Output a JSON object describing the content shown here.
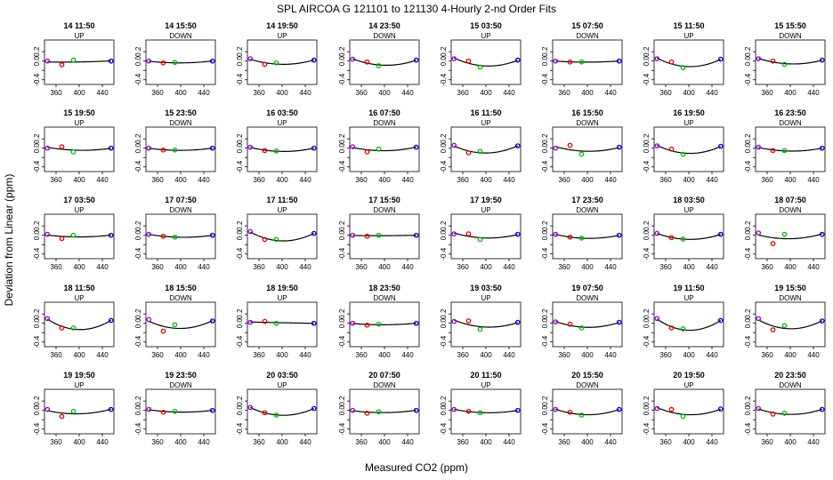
{
  "title": "SPL   AIRCOA G   121101 to 121130   4-Hourly 2-nd Order Fits",
  "xlabel": "Measured CO2 (ppm)",
  "ylabel": "Deviation from Linear (ppm)",
  "chart_data": {
    "type": "scatter",
    "layout": {
      "rows": 5,
      "cols": 8
    },
    "xlim": [
      340,
      460
    ],
    "ylim": [
      -0.5,
      0.45
    ],
    "x_ticks": [
      360,
      400,
      440
    ],
    "y_ticks": [
      -0.4,
      -0.2,
      0.0,
      0.2
    ],
    "y_tick_labels": [
      "-0.4",
      "",
      "0.0",
      "0.2"
    ],
    "x_tick_labels": [
      "360",
      "400",
      "440"
    ],
    "standard_x": [
      345,
      370,
      390,
      455
    ],
    "colors": {
      "s1": "#9900cc",
      "s2": "#dd0000",
      "s3": "#00bb00",
      "s4": "#0000cc",
      "fit": "#000000"
    },
    "panels": [
      {
        "label": "14 11:50",
        "dir": "UP",
        "y": [
          0.0,
          -0.08,
          0.02,
          0.0
        ]
      },
      {
        "label": "14 15:50",
        "dir": "DOWN",
        "y": [
          0.0,
          -0.04,
          -0.03,
          0.0
        ]
      },
      {
        "label": "14 19:50",
        "dir": "UP",
        "y": [
          0.05,
          -0.07,
          -0.04,
          0.02
        ]
      },
      {
        "label": "14 23:50",
        "dir": "DOWN",
        "y": [
          0.04,
          -0.02,
          -0.1,
          0.02
        ]
      },
      {
        "label": "15 03:50",
        "dir": "UP",
        "y": [
          0.05,
          0.0,
          -0.13,
          0.02
        ]
      },
      {
        "label": "15 07:50",
        "dir": "DOWN",
        "y": [
          0.0,
          -0.02,
          -0.02,
          0.0
        ]
      },
      {
        "label": "15 11:50",
        "dir": "UP",
        "y": [
          0.05,
          -0.02,
          -0.14,
          0.04
        ]
      },
      {
        "label": "15 15:50",
        "dir": "DOWN",
        "y": [
          0.05,
          0.0,
          -0.07,
          0.02
        ]
      },
      {
        "label": "15 19:50",
        "dir": "UP",
        "y": [
          0.0,
          0.03,
          -0.08,
          0.0
        ]
      },
      {
        "label": "15 23:50",
        "dir": "DOWN",
        "y": [
          0.0,
          -0.04,
          -0.04,
          0.0
        ]
      },
      {
        "label": "16 03:50",
        "dir": "UP",
        "y": [
          0.02,
          -0.05,
          -0.06,
          0.0
        ]
      },
      {
        "label": "16 07:50",
        "dir": "DOWN",
        "y": [
          0.03,
          -0.08,
          -0.02,
          0.02
        ]
      },
      {
        "label": "16 11:50",
        "dir": "UP",
        "y": [
          0.06,
          -0.1,
          -0.07,
          0.05
        ]
      },
      {
        "label": "16 15:50",
        "dir": "DOWN",
        "y": [
          0.0,
          0.06,
          -0.13,
          0.02
        ]
      },
      {
        "label": "16 19:50",
        "dir": "UP",
        "y": [
          0.05,
          -0.02,
          -0.13,
          0.04
        ]
      },
      {
        "label": "16 23:50",
        "dir": "DOWN",
        "y": [
          0.02,
          -0.05,
          -0.05,
          0.0
        ]
      },
      {
        "label": "17 03:50",
        "dir": "UP",
        "y": [
          0.02,
          -0.07,
          0.0,
          0.0
        ]
      },
      {
        "label": "17 07:50",
        "dir": "DOWN",
        "y": [
          0.02,
          -0.02,
          -0.04,
          0.0
        ]
      },
      {
        "label": "17 11:50",
        "dir": "UP",
        "y": [
          0.08,
          -0.09,
          -0.09,
          0.04
        ]
      },
      {
        "label": "17 15:50",
        "dir": "DOWN",
        "y": [
          0.0,
          -0.02,
          0.0,
          0.0
        ]
      },
      {
        "label": "17 19:50",
        "dir": "UP",
        "y": [
          0.03,
          0.03,
          -0.09,
          0.02
        ]
      },
      {
        "label": "17 23:50",
        "dir": "DOWN",
        "y": [
          0.02,
          -0.04,
          -0.06,
          0.0
        ]
      },
      {
        "label": "18 03:50",
        "dir": "UP",
        "y": [
          0.04,
          -0.05,
          -0.08,
          0.02
        ]
      },
      {
        "label": "18 07:50",
        "dir": "DOWN",
        "y": [
          0.05,
          -0.18,
          0.02,
          0.02
        ]
      },
      {
        "label": "18 11:50",
        "dir": "UP",
        "y": [
          0.1,
          -0.1,
          -0.1,
          0.06
        ]
      },
      {
        "label": "18 15:50",
        "dir": "DOWN",
        "y": [
          0.08,
          -0.17,
          -0.03,
          0.05
        ]
      },
      {
        "label": "18 19:50",
        "dir": "UP",
        "y": [
          0.02,
          0.04,
          0.0,
          0.0
        ]
      },
      {
        "label": "18 23:50",
        "dir": "DOWN",
        "y": [
          0.0,
          -0.04,
          -0.02,
          0.0
        ]
      },
      {
        "label": "19 03:50",
        "dir": "UP",
        "y": [
          0.04,
          0.05,
          -0.13,
          0.02
        ]
      },
      {
        "label": "19 07:50",
        "dir": "DOWN",
        "y": [
          0.03,
          -0.02,
          -0.1,
          0.02
        ]
      },
      {
        "label": "19 11:50",
        "dir": "UP",
        "y": [
          0.1,
          -0.1,
          -0.12,
          0.06
        ]
      },
      {
        "label": "19 15:50",
        "dir": "DOWN",
        "y": [
          0.1,
          -0.14,
          -0.05,
          0.05
        ]
      },
      {
        "label": "19 19:50",
        "dir": "UP",
        "y": [
          0.02,
          -0.13,
          -0.02,
          0.02
        ]
      },
      {
        "label": "19 23:50",
        "dir": "DOWN",
        "y": [
          0.02,
          -0.04,
          -0.02,
          0.0
        ]
      },
      {
        "label": "20 03:50",
        "dir": "UP",
        "y": [
          0.06,
          -0.05,
          -0.1,
          0.04
        ]
      },
      {
        "label": "20 07:50",
        "dir": "DOWN",
        "y": [
          0.0,
          -0.06,
          -0.03,
          0.0
        ]
      },
      {
        "label": "20 11:50",
        "dir": "UP",
        "y": [
          0.02,
          -0.02,
          -0.05,
          0.0
        ]
      },
      {
        "label": "20 15:50",
        "dir": "DOWN",
        "y": [
          0.02,
          -0.04,
          -0.1,
          0.02
        ]
      },
      {
        "label": "20 19:50",
        "dir": "UP",
        "y": [
          0.04,
          0.02,
          -0.13,
          0.03
        ]
      },
      {
        "label": "20 23:50",
        "dir": "DOWN",
        "y": [
          0.04,
          -0.08,
          -0.06,
          0.02
        ]
      }
    ]
  }
}
